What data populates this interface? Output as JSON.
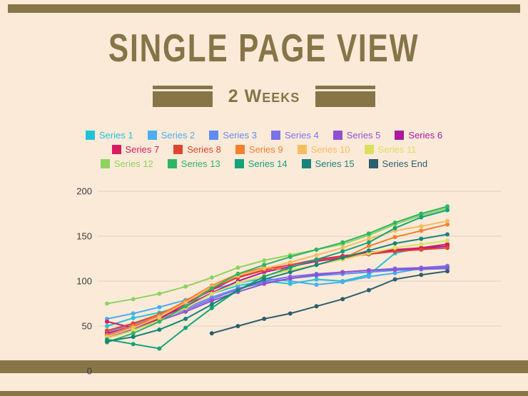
{
  "header": {
    "title": "SINGLE PAGE VIEW",
    "subtitle": "2 Weeks"
  },
  "theme": {
    "background": "#fcead9",
    "bar_color": "#877548",
    "title_color": "#877548",
    "gridline_color": "#dcd2c3",
    "tick_label_color": "#3c3c3c"
  },
  "chart_data": {
    "type": "line",
    "title": "Single Page View - 2 Weeks",
    "xlabel": "",
    "ylabel": "",
    "x": [
      1,
      2,
      3,
      4,
      5,
      6,
      7,
      8,
      9,
      10,
      11,
      12,
      13,
      14
    ],
    "ylim": [
      0,
      200
    ],
    "yticks": [
      0,
      50,
      100,
      150,
      200
    ],
    "grid": true,
    "legend_position": "top",
    "marker": "circle",
    "series": [
      {
        "name": "Series 1",
        "color": "#22c3d6",
        "values": [
          50,
          59,
          65,
          73,
          86,
          95,
          100,
          97,
          102,
          100,
          107,
          131,
          137,
          141
        ]
      },
      {
        "name": "Series 2",
        "color": "#4aaef0",
        "values": [
          58,
          64,
          71,
          79,
          91,
          98,
          103,
          100,
          96,
          99,
          105,
          109,
          114,
          116
        ]
      },
      {
        "name": "Series 3",
        "color": "#5f8df0",
        "values": [
          44,
          52,
          61,
          70,
          82,
          92,
          98,
          103,
          106,
          108,
          110,
          112,
          113,
          114
        ]
      },
      {
        "name": "Series 4",
        "color": "#7b72ea",
        "values": [
          40,
          48,
          58,
          68,
          80,
          91,
          100,
          105,
          108,
          110,
          112,
          114,
          115,
          117
        ]
      },
      {
        "name": "Series 5",
        "color": "#9152cf",
        "values": [
          38,
          46,
          56,
          66,
          78,
          88,
          97,
          103,
          107,
          110,
          112,
          113,
          114,
          115
        ]
      },
      {
        "name": "Series 6",
        "color": "#b0189e",
        "values": [
          42,
          50,
          59,
          72,
          87,
          100,
          110,
          116,
          122,
          126,
          130,
          134,
          136,
          139
        ]
      },
      {
        "name": "Series 7",
        "color": "#d81b60",
        "values": [
          55,
          48,
          58,
          75,
          90,
          105,
          113,
          118,
          124,
          128,
          132,
          135,
          137,
          141
        ]
      },
      {
        "name": "Series 8",
        "color": "#e2452f",
        "values": [
          45,
          53,
          63,
          77,
          92,
          104,
          112,
          118,
          123,
          127,
          130,
          133,
          135,
          137
        ]
      },
      {
        "name": "Series 9",
        "color": "#f57f2e",
        "values": [
          40,
          50,
          62,
          78,
          95,
          108,
          115,
          112,
          118,
          125,
          139,
          149,
          156,
          163
        ]
      },
      {
        "name": "Series 10",
        "color": "#f6bd60",
        "values": [
          38,
          48,
          60,
          76,
          94,
          106,
          114,
          121,
          129,
          137,
          147,
          156,
          161,
          167
        ]
      },
      {
        "name": "Series 11",
        "color": "#d9e05c",
        "values": [
          36,
          45,
          56,
          70,
          86,
          98,
          106,
          112,
          118,
          124,
          131,
          137,
          141,
          145
        ]
      },
      {
        "name": "Series 12",
        "color": "#8ed35f",
        "values": [
          75,
          80,
          86,
          94,
          104,
          115,
          123,
          129,
          135,
          141,
          151,
          163,
          173,
          181
        ]
      },
      {
        "name": "Series 13",
        "color": "#2eb562",
        "values": [
          32,
          42,
          55,
          72,
          92,
          108,
          118,
          127,
          135,
          143,
          153,
          165,
          175,
          183
        ]
      },
      {
        "name": "Series 14",
        "color": "#12a379",
        "values": [
          35,
          30,
          25,
          48,
          70,
          90,
          105,
          115,
          124,
          133,
          143,
          159,
          171,
          179
        ]
      },
      {
        "name": "Series 15",
        "color": "#17837a",
        "values": [
          33,
          38,
          46,
          58,
          74,
          90,
          102,
          110,
          118,
          126,
          134,
          142,
          147,
          152
        ]
      },
      {
        "name": "Series End",
        "color": "#2c5f6d",
        "values": [
          null,
          null,
          null,
          null,
          42,
          50,
          58,
          64,
          72,
          80,
          90,
          102,
          107,
          111
        ]
      }
    ]
  }
}
